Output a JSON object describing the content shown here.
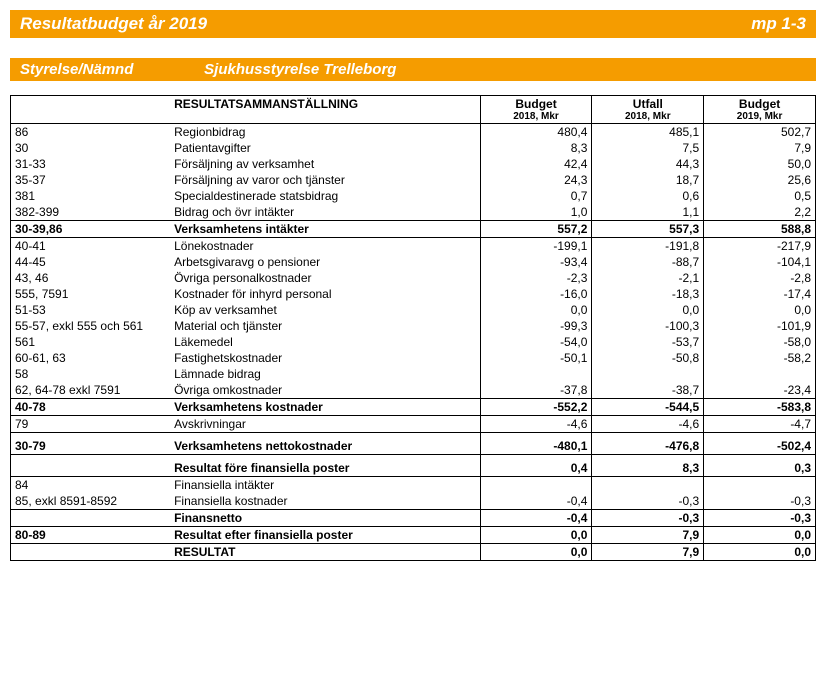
{
  "banner": {
    "title": "Resultatbudget år 2019",
    "right": "mp 1-3"
  },
  "subbanner": {
    "left": "Styrelse/Nämnd",
    "right": "Sjukhusstyrelse Trelleborg"
  },
  "columns": {
    "desc": "RESULTATSAMMANSTÄLLNING",
    "c1a": "Budget",
    "c1b": "2018, Mkr",
    "c2a": "Utfall",
    "c2b": "2018, Mkr",
    "c3a": "Budget",
    "c3b": "2019, Mkr"
  },
  "rows": [
    {
      "code": "86",
      "desc": "Regionbidrag",
      "v": [
        "480,4",
        "485,1",
        "502,7"
      ]
    },
    {
      "code": "30",
      "desc": "Patientavgifter",
      "v": [
        "8,3",
        "7,5",
        "7,9"
      ]
    },
    {
      "code": "31-33",
      "desc": "Försäljning av verksamhet",
      "v": [
        "42,4",
        "44,3",
        "50,0"
      ]
    },
    {
      "code": "35-37",
      "desc": "Försäljning av varor och tjänster",
      "v": [
        "24,3",
        "18,7",
        "25,6"
      ]
    },
    {
      "code": "381",
      "desc": "Specialdestinerade statsbidrag",
      "v": [
        "0,7",
        "0,6",
        "0,5"
      ]
    },
    {
      "code": "382-399",
      "desc": "Bidrag och övr intäkter",
      "v": [
        "1,0",
        "1,1",
        "2,2"
      ]
    },
    {
      "code": "30-39,86",
      "desc": "Verksamhetens intäkter",
      "v": [
        "557,2",
        "557,3",
        "588,8"
      ],
      "bold": true,
      "top": true,
      "bot": true
    },
    {
      "code": "40-41",
      "desc": "Lönekostnader",
      "v": [
        "-199,1",
        "-191,8",
        "-217,9"
      ]
    },
    {
      "code": "44-45",
      "desc": "Arbetsgivaravg o pensioner",
      "v": [
        "-93,4",
        "-88,7",
        "-104,1"
      ]
    },
    {
      "code": "43, 46",
      "desc": "Övriga personalkostnader",
      "v": [
        "-2,3",
        "-2,1",
        "-2,8"
      ]
    },
    {
      "code": "555, 7591",
      "desc": "Kostnader för inhyrd personal",
      "v": [
        "-16,0",
        "-18,3",
        "-17,4"
      ]
    },
    {
      "code": "51-53",
      "desc": "Köp av verksamhet",
      "v": [
        "0,0",
        "0,0",
        "0,0"
      ]
    },
    {
      "code": "55-57, exkl 555 och 561",
      "desc": "Material och tjänster",
      "v": [
        "-99,3",
        "-100,3",
        "-101,9"
      ]
    },
    {
      "code": "561",
      "desc": "Läkemedel",
      "v": [
        "-54,0",
        "-53,7",
        "-58,0"
      ]
    },
    {
      "code": "60-61, 63",
      "desc": "Fastighetskostnader",
      "v": [
        "-50,1",
        "-50,8",
        "-58,2"
      ]
    },
    {
      "code": "58",
      "desc": "Lämnade bidrag",
      "v": [
        "",
        "",
        ""
      ]
    },
    {
      "code": "62, 64-78 exkl 7591",
      "desc": "Övriga omkostnader",
      "v": [
        "-37,8",
        "-38,7",
        "-23,4"
      ]
    },
    {
      "code": "40-78",
      "desc": "Verksamhetens kostnader",
      "v": [
        "-552,2",
        "-544,5",
        "-583,8"
      ],
      "bold": true,
      "top": true,
      "bot": true
    },
    {
      "code": "79",
      "desc": "Avskrivningar",
      "v": [
        "-4,6",
        "-4,6",
        "-4,7"
      ]
    },
    {
      "code": "30-79",
      "desc": "Verksamhetens nettokostnader",
      "v": [
        "-480,1",
        "-476,8",
        "-502,4"
      ],
      "bold": true,
      "top": true,
      "bot": true,
      "tall": true
    },
    {
      "code": "",
      "desc": "Resultat före finansiella poster",
      "v": [
        "0,4",
        "8,3",
        "0,3"
      ],
      "bold": true,
      "bot": true,
      "tall": true
    },
    {
      "code": "84",
      "desc": "Finansiella intäkter",
      "v": [
        "",
        "",
        ""
      ]
    },
    {
      "code": "85, exkl 8591-8592",
      "desc": "Finansiella kostnader",
      "v": [
        "-0,4",
        "-0,3",
        "-0,3"
      ]
    },
    {
      "code": "",
      "desc": "Finansnetto",
      "v": [
        "-0,4",
        "-0,3",
        "-0,3"
      ],
      "bold": true,
      "top": true,
      "bot": true
    },
    {
      "code": "80-89",
      "desc": "Resultat efter finansiella poster",
      "v": [
        "0,0",
        "7,9",
        "0,0"
      ],
      "bold": true,
      "bot": true
    },
    {
      "code": "",
      "desc": "RESULTAT",
      "v": [
        "0,0",
        "7,9",
        "0,0"
      ],
      "bold": true,
      "bot": true
    }
  ],
  "styling": {
    "accent": "#f59c00",
    "text": "#000000",
    "border": "#000000",
    "font_body": 12,
    "font_banner": 17,
    "font_sub": 15
  }
}
